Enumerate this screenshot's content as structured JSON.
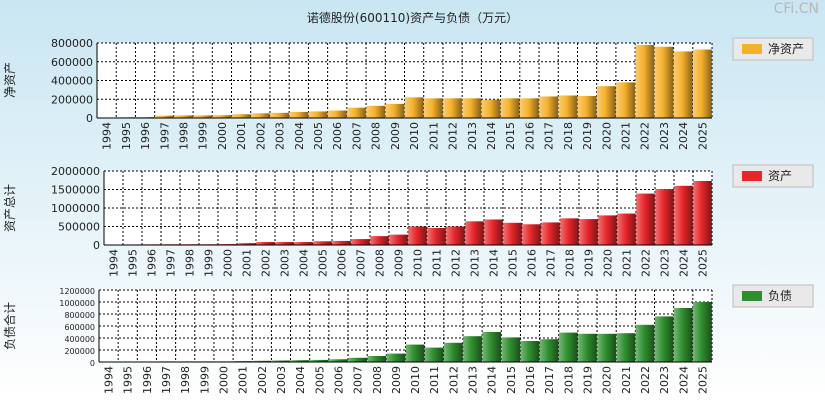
{
  "title": "诺德股份(600110)资产与负债（万元）",
  "watermark": "CFi.CN",
  "chart_data": [
    {
      "type": "bar",
      "ylabel": "净资产",
      "legend": "净资产",
      "color": "#f6b12c",
      "ylim": [
        0,
        800000
      ],
      "yticks": [
        0,
        200000,
        400000,
        600000,
        800000
      ],
      "categories": [
        "1994",
        "1995",
        "1996",
        "1997",
        "1998",
        "1999",
        "2000",
        "2001",
        "2002",
        "2003",
        "2004",
        "2005",
        "2006",
        "2007",
        "2008",
        "2009",
        "2010",
        "2011",
        "2012",
        "2013",
        "2014",
        "2015",
        "2016",
        "2017",
        "2018",
        "2019",
        "2020",
        "2021",
        "2022",
        "2023",
        "2024",
        "2025"
      ],
      "values": [
        5000,
        8000,
        10000,
        25000,
        28000,
        28000,
        30000,
        40000,
        50000,
        55000,
        65000,
        70000,
        80000,
        110000,
        130000,
        150000,
        220000,
        210000,
        210000,
        210000,
        195000,
        210000,
        210000,
        230000,
        240000,
        235000,
        340000,
        380000,
        780000,
        760000,
        710000,
        730000
      ]
    },
    {
      "type": "bar",
      "ylabel": "资产总计",
      "legend": "资产",
      "color": "#e8262a",
      "ylim": [
        0,
        2000000
      ],
      "yticks": [
        0,
        500000,
        1000000,
        1500000,
        2000000
      ],
      "categories": [
        "1994",
        "1995",
        "1996",
        "1997",
        "1998",
        "1999",
        "2000",
        "2001",
        "2002",
        "2003",
        "2004",
        "2005",
        "2006",
        "2007",
        "2008",
        "2009",
        "2010",
        "2011",
        "2012",
        "2013",
        "2014",
        "2015",
        "2016",
        "2017",
        "2018",
        "2019",
        "2020",
        "2021",
        "2022",
        "2023",
        "2024",
        "2025"
      ],
      "values": [
        10000,
        15000,
        18000,
        20000,
        20000,
        20000,
        25000,
        50000,
        80000,
        80000,
        80000,
        100000,
        110000,
        160000,
        240000,
        280000,
        500000,
        460000,
        500000,
        640000,
        690000,
        600000,
        560000,
        610000,
        720000,
        700000,
        800000,
        850000,
        1390000,
        1510000,
        1600000,
        1730000
      ]
    },
    {
      "type": "bar",
      "ylabel": "负债合计",
      "legend": "负债",
      "color": "#2f8f2f",
      "ylim": [
        0,
        1200000
      ],
      "yticks": [
        0,
        200000,
        400000,
        600000,
        800000,
        1000000,
        1200000
      ],
      "categories": [
        "1994",
        "1995",
        "1996",
        "1997",
        "1998",
        "1999",
        "2000",
        "2001",
        "2002",
        "2003",
        "2004",
        "2005",
        "2006",
        "2007",
        "2008",
        "2009",
        "2010",
        "2011",
        "2012",
        "2013",
        "2014",
        "2015",
        "2016",
        "2017",
        "2018",
        "2019",
        "2020",
        "2021",
        "2022",
        "2023",
        "2024",
        "2025"
      ],
      "values": [
        8000,
        8000,
        8000,
        10000,
        10000,
        10000,
        10000,
        15000,
        20000,
        25000,
        30000,
        35000,
        45000,
        70000,
        100000,
        140000,
        290000,
        240000,
        320000,
        430000,
        500000,
        410000,
        350000,
        380000,
        490000,
        470000,
        470000,
        480000,
        620000,
        760000,
        900000,
        1000000
      ]
    }
  ]
}
